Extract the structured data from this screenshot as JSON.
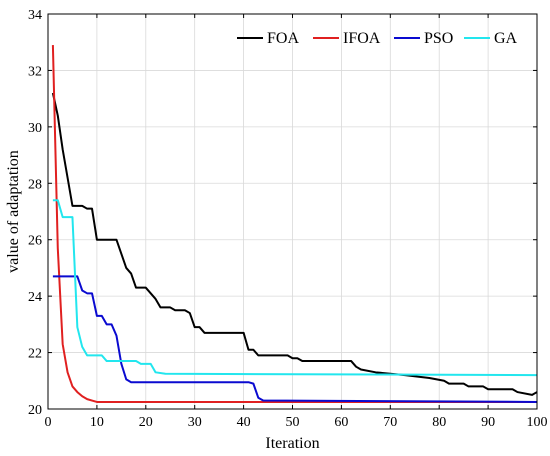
{
  "chart_data": {
    "type": "line",
    "title": "",
    "xlabel": "Iteration",
    "ylabel": "value of adaptation",
    "xlim": [
      0,
      100
    ],
    "ylim": [
      20,
      34
    ],
    "x_ticks": [
      0,
      10,
      20,
      30,
      40,
      50,
      60,
      70,
      80,
      90,
      100
    ],
    "y_ticks": [
      20,
      22,
      24,
      26,
      28,
      30,
      32,
      34
    ],
    "grid": true,
    "legend_position": "top-right",
    "series": [
      {
        "name": "FOA",
        "color": "#000000",
        "points": [
          [
            1,
            31.2
          ],
          [
            2,
            30.4
          ],
          [
            3,
            29.2
          ],
          [
            4,
            28.2
          ],
          [
            5,
            27.2
          ],
          [
            7,
            27.2
          ],
          [
            8,
            27.1
          ],
          [
            9,
            27.1
          ],
          [
            10,
            26.0
          ],
          [
            14,
            26.0
          ],
          [
            15,
            25.5
          ],
          [
            16,
            25.0
          ],
          [
            17,
            24.8
          ],
          [
            18,
            24.3
          ],
          [
            20,
            24.3
          ],
          [
            21,
            24.1
          ],
          [
            22,
            23.9
          ],
          [
            23,
            23.6
          ],
          [
            25,
            23.6
          ],
          [
            26,
            23.5
          ],
          [
            28,
            23.5
          ],
          [
            29,
            23.4
          ],
          [
            30,
            22.9
          ],
          [
            31,
            22.9
          ],
          [
            32,
            22.7
          ],
          [
            40,
            22.7
          ],
          [
            41,
            22.1
          ],
          [
            42,
            22.1
          ],
          [
            43,
            21.9
          ],
          [
            49,
            21.9
          ],
          [
            50,
            21.8
          ],
          [
            51,
            21.8
          ],
          [
            52,
            21.7
          ],
          [
            62,
            21.7
          ],
          [
            63,
            21.5
          ],
          [
            64,
            21.4
          ],
          [
            67,
            21.3
          ],
          [
            73,
            21.2
          ],
          [
            78,
            21.1
          ],
          [
            81,
            21.0
          ],
          [
            82,
            20.9
          ],
          [
            85,
            20.9
          ],
          [
            86,
            20.8
          ],
          [
            89,
            20.8
          ],
          [
            90,
            20.7
          ],
          [
            95,
            20.7
          ],
          [
            96,
            20.6
          ],
          [
            99,
            20.5
          ],
          [
            100,
            20.6
          ]
        ]
      },
      {
        "name": "IFOA",
        "color": "#e02020",
        "points": [
          [
            1,
            32.9
          ],
          [
            2,
            25.7
          ],
          [
            3,
            22.3
          ],
          [
            4,
            21.3
          ],
          [
            5,
            20.8
          ],
          [
            6,
            20.6
          ],
          [
            7,
            20.45
          ],
          [
            8,
            20.35
          ],
          [
            9,
            20.3
          ],
          [
            10,
            20.25
          ],
          [
            100,
            20.25
          ]
        ]
      },
      {
        "name": "PSO",
        "color": "#0a0ad0",
        "points": [
          [
            1,
            24.7
          ],
          [
            6,
            24.7
          ],
          [
            7,
            24.2
          ],
          [
            8,
            24.1
          ],
          [
            9,
            24.1
          ],
          [
            10,
            23.3
          ],
          [
            11,
            23.3
          ],
          [
            12,
            23.0
          ],
          [
            13,
            23.0
          ],
          [
            14,
            22.6
          ],
          [
            15,
            21.6
          ],
          [
            16,
            21.05
          ],
          [
            17,
            20.95
          ],
          [
            41,
            20.95
          ],
          [
            42,
            20.9
          ],
          [
            43,
            20.4
          ],
          [
            44,
            20.3
          ],
          [
            100,
            20.25
          ]
        ]
      },
      {
        "name": "GA",
        "color": "#22e6ee",
        "points": [
          [
            1,
            27.4
          ],
          [
            2,
            27.4
          ],
          [
            3,
            26.8
          ],
          [
            5,
            26.8
          ],
          [
            6,
            22.9
          ],
          [
            7,
            22.2
          ],
          [
            8,
            21.9
          ],
          [
            11,
            21.9
          ],
          [
            12,
            21.7
          ],
          [
            18,
            21.7
          ],
          [
            19,
            21.6
          ],
          [
            21,
            21.6
          ],
          [
            22,
            21.3
          ],
          [
            24,
            21.25
          ],
          [
            100,
            21.2
          ]
        ]
      }
    ]
  }
}
